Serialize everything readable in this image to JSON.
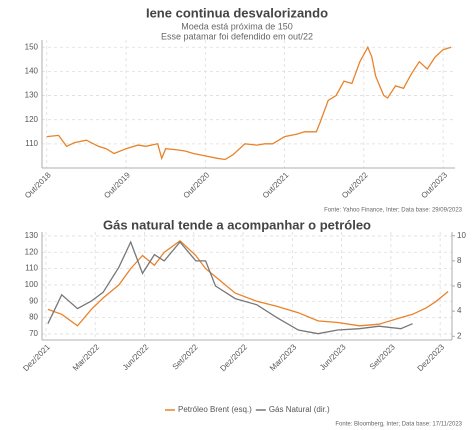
{
  "chart_data": [
    {
      "type": "line",
      "title": "Iene continua desvalorizando",
      "subtitle": [
        "Moeda está próxima de 150",
        "Esse patamar foi defendido em out/22"
      ],
      "source": "Fonte: Yahoo Finance, Inter; Data base: 29/09/2023",
      "x": [
        2018.75,
        2018.9,
        2019.0,
        2019.1,
        2019.25,
        2019.4,
        2019.5,
        2019.6,
        2019.75,
        2019.9,
        2020.0,
        2020.15,
        2020.2,
        2020.25,
        2020.4,
        2020.5,
        2020.6,
        2020.75,
        2020.9,
        2021.0,
        2021.1,
        2021.25,
        2021.4,
        2021.5,
        2021.6,
        2021.75,
        2021.9,
        2022.0,
        2022.15,
        2022.2,
        2022.3,
        2022.4,
        2022.5,
        2022.6,
        2022.7,
        2022.8,
        2022.85,
        2022.9,
        2023.0,
        2023.05,
        2023.15,
        2023.25,
        2023.35,
        2023.45,
        2023.55,
        2023.65,
        2023.75,
        2023.85
      ],
      "series": [
        {
          "color": "#e8832a",
          "values": [
            113,
            113.5,
            109,
            110.5,
            111.5,
            109,
            108,
            106,
            108,
            109.5,
            109,
            110,
            104,
            108,
            107.5,
            107,
            106,
            105,
            104,
            103.5,
            105.5,
            110,
            109.5,
            110,
            110,
            113,
            114,
            115,
            115,
            119,
            128,
            130,
            136,
            135,
            144,
            150,
            146,
            138,
            130,
            129,
            134,
            133,
            139,
            144,
            141,
            146,
            149,
            150
          ]
        }
      ],
      "xlim": [
        2018.69,
        2023.9
      ],
      "ylim": [
        100,
        153
      ],
      "yticks": [
        110,
        120,
        130,
        140,
        150
      ],
      "xticks": [
        {
          "value": 2018.75,
          "label": "Out/2018"
        },
        {
          "value": 2019.75,
          "label": "Out/2019"
        },
        {
          "value": 2020.75,
          "label": "Out/2020"
        },
        {
          "value": 2021.75,
          "label": "Out/2021"
        },
        {
          "value": 2022.75,
          "label": "Out/2022"
        },
        {
          "value": 2023.75,
          "label": "Out/2023"
        }
      ],
      "grid": true
    },
    {
      "type": "line",
      "title": "Gás natural tende a acompanhar o petróleo",
      "source": "Fonte: Bloomberg, Inter; Data base: 17/11/2023",
      "x": [
        2021.93,
        2022.0,
        2022.08,
        2022.15,
        2022.21,
        2022.29,
        2022.35,
        2022.41,
        2022.47,
        2022.52,
        2022.6,
        2022.68,
        2022.73,
        2022.78,
        2022.88,
        2022.99,
        2023.09,
        2023.2,
        2023.3,
        2023.4,
        2023.51,
        2023.61,
        2023.72,
        2023.78,
        2023.85,
        2023.9,
        2023.96
      ],
      "series": [
        {
          "name": "Petróleo Brent (esq.)",
          "color": "#e8832a",
          "values": [
            85,
            82,
            75,
            85,
            92,
            100,
            110,
            118,
            112,
            120,
            127,
            118,
            110,
            105,
            95,
            90,
            87,
            83,
            78,
            77,
            75,
            76,
            80,
            82,
            86,
            90,
            96
          ]
        },
        {
          "name": "Gás Natural (dir.)",
          "color": "#777777",
          "axis": "y2",
          "values": [
            3,
            5.3,
            4.2,
            4.8,
            5.5,
            7.5,
            9.5,
            7,
            8.5,
            8,
            9.5,
            8,
            8,
            6,
            5,
            4.5,
            3.5,
            2.5,
            2.2,
            2.5,
            2.6,
            2.8,
            2.6,
            3,
            null,
            null,
            null
          ]
        }
      ],
      "xlim": [
        2021.9,
        2023.98
      ],
      "ylim": [
        66.3,
        132.4
      ],
      "yticks": [
        70,
        80,
        90,
        100,
        110,
        120,
        130
      ],
      "y2lim": [
        1.7,
        10.3
      ],
      "y2ticks": [
        2,
        4,
        6,
        8,
        10
      ],
      "xticks": [
        {
          "value": 2021.92,
          "label": "Dez/2021"
        },
        {
          "value": 2022.17,
          "label": "Mar/2022"
        },
        {
          "value": 2022.42,
          "label": "Jun/2022"
        },
        {
          "value": 2022.67,
          "label": "Set/2022"
        },
        {
          "value": 2022.92,
          "label": "Dez/2022"
        },
        {
          "value": 2023.17,
          "label": "Mar/2023"
        },
        {
          "value": 2023.42,
          "label": "Jun/2023"
        },
        {
          "value": 2023.67,
          "label": "Set/2023"
        },
        {
          "value": 2023.92,
          "label": "Dez/2023"
        }
      ],
      "grid": true,
      "legend": "bottom"
    }
  ]
}
